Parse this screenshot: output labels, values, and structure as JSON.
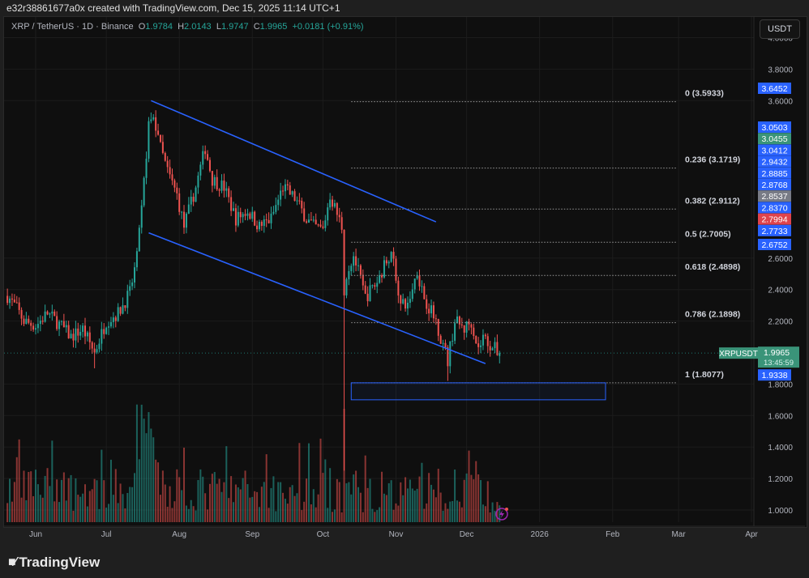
{
  "header": {
    "attribution": "e32r38861677a0x created with TradingView.com, Dec 15, 2025 11:14 UTC+1"
  },
  "legend": {
    "symbol": "XRP / TetherUS · 1D · Binance",
    "o_label": "O",
    "o": "1.9784",
    "h_label": "H",
    "h": "2.0143",
    "l_label": "L",
    "l": "1.9747",
    "c_label": "C",
    "c": "1.9965",
    "change": "+0.0181 (+0.91%)"
  },
  "currency_button": "USDT",
  "footer": {
    "brand": "TradingView",
    "logo_mark": "17"
  },
  "colors": {
    "up": "#26a69a",
    "down": "#ef5350",
    "drawing": "#2962ff",
    "background": "#0f0f0f"
  },
  "chart_data": {
    "type": "candlestick",
    "symbol": "XRPUSDT",
    "price_axis_ticks": [
      "4.0000",
      "3.8000",
      "3.6000",
      "2.6000",
      "2.4000",
      "2.2000",
      "1.8000",
      "1.6000",
      "1.4000",
      "1.2000",
      "1.0000"
    ],
    "price_axis_tick_values": [
      4.0,
      3.8,
      3.6,
      2.6,
      2.4,
      2.2,
      1.8,
      1.6,
      1.4,
      1.2,
      1.0
    ],
    "time_axis_ticks": [
      {
        "label": "Jun",
        "day": 0
      },
      {
        "label": "Jul",
        "day": 30
      },
      {
        "label": "Aug",
        "day": 61
      },
      {
        "label": "Sep",
        "day": 92
      },
      {
        "label": "Oct",
        "day": 122
      },
      {
        "label": "Nov",
        "day": 153
      },
      {
        "label": "Dec",
        "day": 183
      },
      {
        "label": "2026",
        "day": 214
      },
      {
        "label": "Feb",
        "day": 245
      },
      {
        "label": "Mar",
        "day": 273
      },
      {
        "label": "Apr",
        "day": 304
      }
    ],
    "close_path_note": "approximate closes, day index from Jun 1 2025",
    "close_path": [
      [
        -12,
        2.36
      ],
      [
        -8,
        2.28
      ],
      [
        -5,
        2.2
      ],
      [
        0,
        2.17
      ],
      [
        5,
        2.25
      ],
      [
        10,
        2.18
      ],
      [
        15,
        2.1
      ],
      [
        20,
        2.15
      ],
      [
        25,
        2.0
      ],
      [
        30,
        2.2
      ],
      [
        35,
        2.25
      ],
      [
        40,
        2.38
      ],
      [
        43,
        2.6
      ],
      [
        45,
        2.9
      ],
      [
        48,
        3.45
      ],
      [
        50,
        3.5
      ],
      [
        53,
        3.3
      ],
      [
        56,
        3.15
      ],
      [
        60,
        3.0
      ],
      [
        63,
        2.8
      ],
      [
        68,
        3.05
      ],
      [
        72,
        3.3
      ],
      [
        75,
        3.1
      ],
      [
        80,
        3.05
      ],
      [
        85,
        2.85
      ],
      [
        90,
        2.9
      ],
      [
        95,
        2.8
      ],
      [
        100,
        2.85
      ],
      [
        105,
        3.05
      ],
      [
        110,
        2.98
      ],
      [
        115,
        2.85
      ],
      [
        118,
        2.8
      ],
      [
        122,
        2.78
      ],
      [
        125,
        3.0
      ],
      [
        128,
        2.88
      ],
      [
        130,
        2.8
      ],
      [
        131,
        2.4
      ],
      [
        132,
        2.5
      ],
      [
        135,
        2.62
      ],
      [
        140,
        2.35
      ],
      [
        145,
        2.45
      ],
      [
        150,
        2.62
      ],
      [
        152,
        2.58
      ],
      [
        155,
        2.3
      ],
      [
        158,
        2.3
      ],
      [
        162,
        2.52
      ],
      [
        165,
        2.35
      ],
      [
        170,
        2.2
      ],
      [
        173,
        2.05
      ],
      [
        175,
        1.95
      ],
      [
        178,
        2.2
      ],
      [
        182,
        2.15
      ],
      [
        185,
        2.2
      ],
      [
        188,
        2.02
      ],
      [
        190,
        2.1
      ],
      [
        193,
        2.05
      ],
      [
        197,
        1.9965
      ]
    ],
    "special_lows": [
      [
        131,
        1.25
      ],
      [
        175,
        1.82
      ],
      [
        25,
        1.9
      ]
    ],
    "fib_levels": [
      {
        "label": "0 (3.5933)",
        "price": 3.5933
      },
      {
        "label": "0.236 (3.1719)",
        "price": 3.1719
      },
      {
        "label": "0.382 (2.9112)",
        "price": 2.9112
      },
      {
        "label": "0.5 (2.7005)",
        "price": 2.7005
      },
      {
        "label": "0.618 (2.4898)",
        "price": 2.4898
      },
      {
        "label": "0.786 (2.1898)",
        "price": 2.1898
      },
      {
        "label": "1 (1.8077)",
        "price": 1.8077
      }
    ],
    "trend_lines": [
      {
        "name": "channel-upper",
        "from": {
          "day": 49,
          "price": 3.6
        },
        "to": {
          "day": 170,
          "price": 2.83
        }
      },
      {
        "name": "channel-lower",
        "from": {
          "day": 48,
          "price": 2.76
        },
        "to": {
          "day": 191,
          "price": 1.93
        }
      }
    ],
    "zone": {
      "from_day": 134,
      "to_day": 242,
      "top": 1.8077,
      "bottom": 1.7
    },
    "price_labels": [
      {
        "text": "3.6452",
        "price": 3.6452,
        "color": "#2962ff"
      },
      {
        "text": "3.0503",
        "price": 3.21,
        "color": "#2962ff"
      },
      {
        "text": "3.0455",
        "price": 3.14,
        "color": "#3a9479"
      },
      {
        "text": "3.0412",
        "price": 3.07,
        "color": "#2962ff"
      },
      {
        "text": "2.9432",
        "price": 3.0,
        "color": "#2962ff"
      },
      {
        "text": "2.8885",
        "price": 2.928,
        "color": "#2962ff"
      },
      {
        "text": "2.8768",
        "price": 2.856,
        "color": "#2962ff"
      },
      {
        "text": "2.8537",
        "price": 2.784,
        "color": "#787b86"
      },
      {
        "text": "2.8370",
        "price": 2.712,
        "color": "#2962ff"
      },
      {
        "text": "2.7994",
        "price": 2.64,
        "color": "#e0434b"
      },
      {
        "text": "2.7733",
        "price": 2.568,
        "color": "#2962ff"
      },
      {
        "text": "2.6752",
        "price": 2.47,
        "color": "#2962ff"
      }
    ],
    "current": {
      "symbol_tag": "XRPUSDT",
      "price": "1.9965",
      "price_value": 1.9965,
      "countdown": "13:45:59"
    },
    "low_label": {
      "text": "1.9338",
      "price": 1.9338
    }
  }
}
